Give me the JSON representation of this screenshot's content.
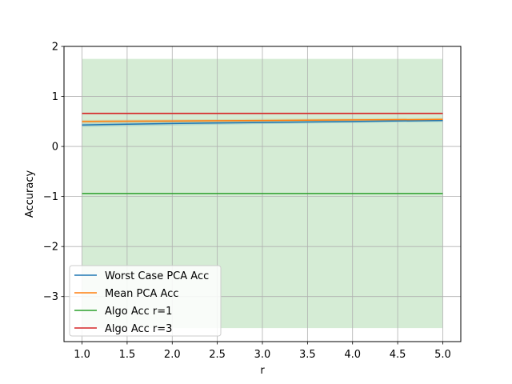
{
  "chart_data": {
    "type": "line",
    "title": "",
    "xlabel": "r",
    "ylabel": "Accuracy",
    "xlim": [
      0.8,
      5.2
    ],
    "ylim": [
      -3.9,
      2.0
    ],
    "xticks": [
      1.0,
      1.5,
      2.0,
      2.5,
      3.0,
      3.5,
      4.0,
      4.5,
      5.0
    ],
    "xtick_labels": [
      "1.0",
      "1.5",
      "2.0",
      "2.5",
      "3.0",
      "3.5",
      "4.0",
      "4.5",
      "5.0"
    ],
    "yticks": [
      -3,
      -2,
      -1,
      0,
      1,
      2
    ],
    "ytick_labels": [
      "−3",
      "−2",
      "−1",
      "0",
      "1",
      "2"
    ],
    "grid": true,
    "legend_position": "lower-left",
    "x": [
      1,
      2,
      3,
      4,
      5
    ],
    "series": [
      {
        "name": "Worst Case PCA Acc",
        "color": "#1f77b4",
        "values": [
          0.43,
          0.46,
          0.48,
          0.5,
          0.52
        ],
        "band": [
          [
            0.39,
            0.47
          ],
          [
            0.42,
            0.5
          ],
          [
            0.45,
            0.52
          ],
          [
            0.47,
            0.53
          ],
          [
            0.49,
            0.55
          ]
        ]
      },
      {
        "name": "Mean PCA Acc",
        "color": "#ff7f0e",
        "values": [
          0.5,
          0.51,
          0.52,
          0.53,
          0.54
        ],
        "band": [
          [
            0.47,
            0.53
          ],
          [
            0.48,
            0.54
          ],
          [
            0.49,
            0.55
          ],
          [
            0.5,
            0.56
          ],
          [
            0.51,
            0.57
          ]
        ]
      },
      {
        "name": "Algo Acc r=1",
        "color": "#2ca02c",
        "values": [
          -0.94,
          -0.94,
          -0.94,
          -0.94,
          -0.94
        ],
        "band": [
          [
            -3.63,
            1.75
          ],
          [
            -3.63,
            1.75
          ],
          [
            -3.63,
            1.75
          ],
          [
            -3.63,
            1.75
          ],
          [
            -3.63,
            1.75
          ]
        ]
      },
      {
        "name": "Algo Acc r=3",
        "color": "#d62728",
        "values": [
          0.66,
          0.66,
          0.66,
          0.66,
          0.66
        ],
        "band": [
          [
            0.64,
            0.68
          ],
          [
            0.64,
            0.68
          ],
          [
            0.64,
            0.68
          ],
          [
            0.64,
            0.68
          ],
          [
            0.64,
            0.68
          ]
        ]
      }
    ]
  }
}
